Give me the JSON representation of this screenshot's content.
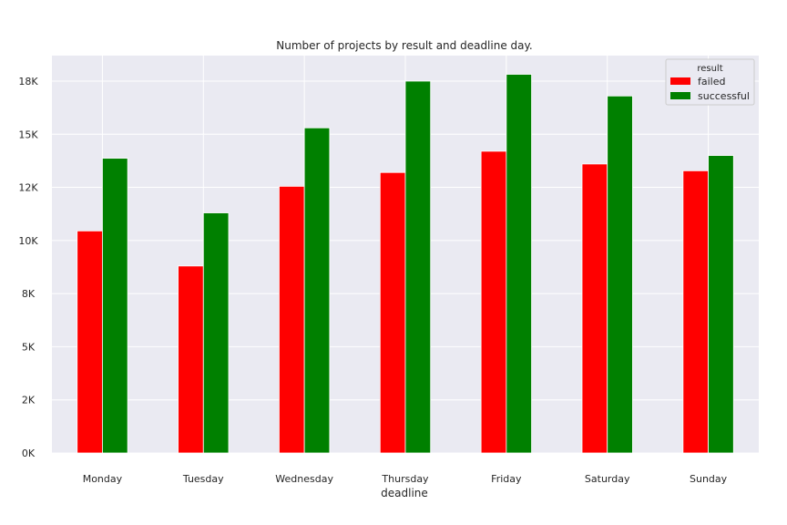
{
  "chart_data": {
    "type": "bar",
    "title": "Number of projects by result and deadline day.",
    "xlabel": "deadline",
    "ylabel": "",
    "categories": [
      "Monday",
      "Tuesday",
      "Wednesday",
      "Thursday",
      "Friday",
      "Saturday",
      "Sunday"
    ],
    "series": [
      {
        "name": "failed",
        "color": "#ff0000",
        "values": [
          10450,
          8800,
          12550,
          13200,
          14200,
          13600,
          13280
        ]
      },
      {
        "name": "successful",
        "color": "#008000",
        "values": [
          13870,
          11300,
          15300,
          17500,
          17820,
          16800,
          14000
        ]
      }
    ],
    "ylim": [
      0,
      18700
    ],
    "yticks": [
      0,
      2500,
      5000,
      7500,
      10000,
      12500,
      15000,
      17500
    ],
    "ytick_labels": [
      "0K",
      "2K",
      "5K",
      "8K",
      "10K",
      "12K",
      "15K",
      "18K"
    ],
    "legend": {
      "title": "result",
      "position": "top-right"
    },
    "grid": true,
    "background_color": "#eaeaf2"
  }
}
